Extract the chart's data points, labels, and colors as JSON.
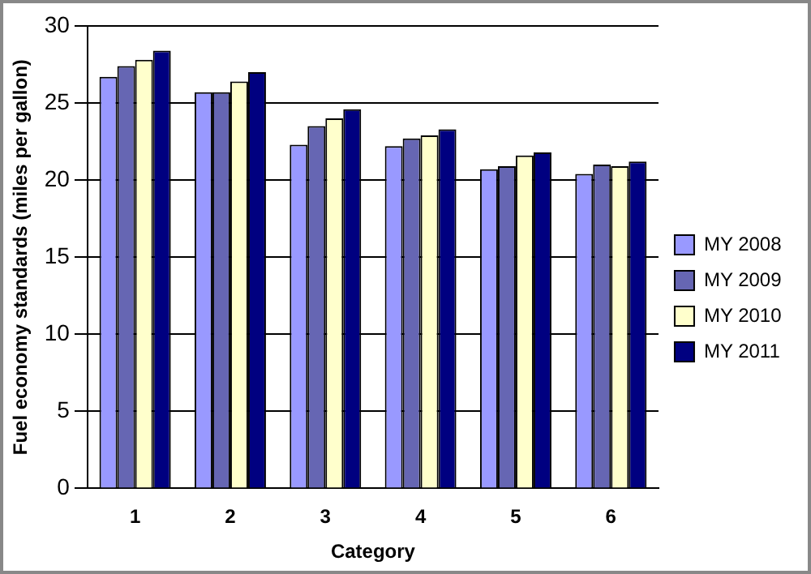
{
  "chart_data": {
    "type": "bar",
    "xlabel": "Category",
    "ylabel": "Fuel economy standards (miles per gallon)",
    "categories": [
      "1",
      "2",
      "3",
      "4",
      "5",
      "6"
    ],
    "series": [
      {
        "name": "MY 2008",
        "color": "#9999ff",
        "values": [
          26.7,
          25.7,
          22.3,
          22.2,
          20.7,
          20.4
        ]
      },
      {
        "name": "MY 2009",
        "color": "#6666b3",
        "values": [
          27.4,
          25.7,
          23.5,
          22.7,
          20.9,
          21.0
        ]
      },
      {
        "name": "MY 2010",
        "color": "#ffffcc",
        "values": [
          27.8,
          26.4,
          24.0,
          22.9,
          21.6,
          20.9
        ]
      },
      {
        "name": "MY 2011",
        "color": "#000080",
        "values": [
          28.4,
          27.0,
          24.6,
          23.3,
          21.8,
          21.2
        ]
      }
    ],
    "ylim": [
      0,
      30
    ],
    "yticks": [
      0,
      5,
      10,
      15,
      20,
      25,
      30
    ],
    "grid": "y",
    "legend": "right"
  }
}
